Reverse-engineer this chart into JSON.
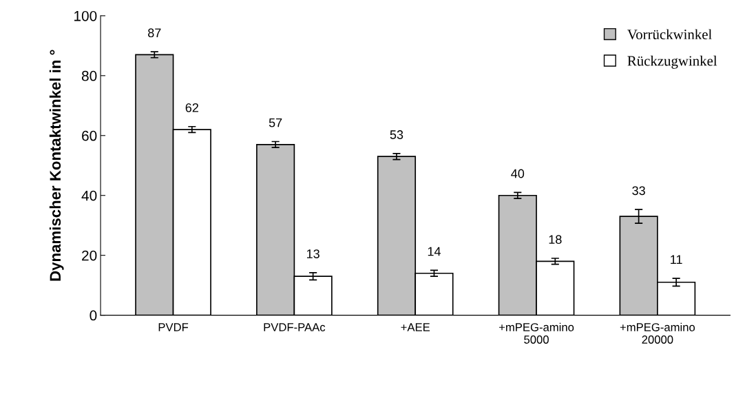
{
  "chart_data": {
    "type": "bar",
    "ylabel": "Dynamischer Kontaktwinkel in °",
    "categories": [
      "PVDF",
      "PVDF-PAAc",
      "+AEE",
      "+mPEG-amino\n5000",
      "+mPEG-amino\n20000"
    ],
    "series": [
      {
        "name": "Vorrückwinkel",
        "color": "#c0c0c0",
        "values": [
          87,
          57,
          53,
          40,
          33
        ],
        "errors": [
          1,
          1,
          1,
          1,
          2.3
        ]
      },
      {
        "name": "Rückzugwinkel",
        "color": "#ffffff",
        "values": [
          62,
          13,
          14,
          18,
          11
        ],
        "errors": [
          1,
          1.2,
          1,
          1,
          1.3
        ]
      }
    ],
    "ylim": [
      0,
      100
    ],
    "yticks": [
      0,
      20,
      40,
      60,
      80,
      100
    ],
    "grid": false,
    "legend": "top right",
    "data_labels": true
  }
}
